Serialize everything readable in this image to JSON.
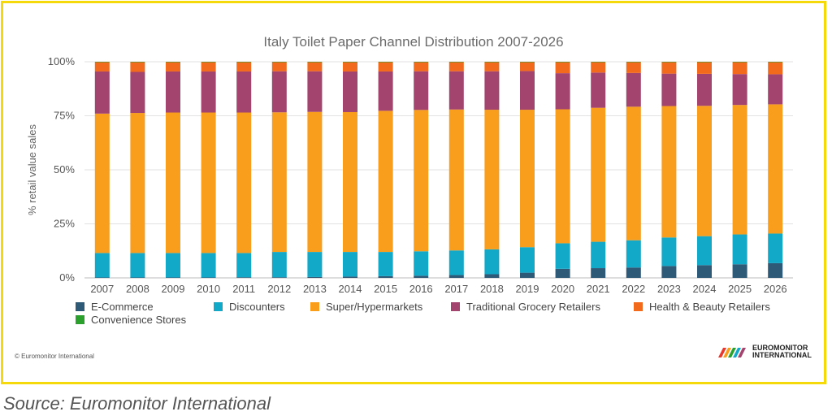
{
  "source_caption": "Source: Euromonitor International",
  "copyright": "© Euromonitor International",
  "logo": {
    "line1": "EUROMONITOR",
    "line2": "INTERNATIONAL"
  },
  "chart_data": {
    "type": "bar",
    "stacked": true,
    "title": "Italy Toilet Paper Channel Distribution 2007-2026",
    "xlabel": "",
    "ylabel": "% retail value sales",
    "ylim": [
      0,
      100
    ],
    "yticks": [
      "0%",
      "25%",
      "50%",
      "75%",
      "100%"
    ],
    "grid": true,
    "legend_position": "bottom",
    "categories": [
      "2007",
      "2008",
      "2009",
      "2010",
      "2011",
      "2012",
      "2013",
      "2014",
      "2015",
      "2016",
      "2017",
      "2018",
      "2019",
      "2020",
      "2021",
      "2022",
      "2023",
      "2024",
      "2025",
      "2026"
    ],
    "series": [
      {
        "name": "E-Commerce",
        "color": "#2e5a78",
        "values": [
          0.2,
          0.2,
          0.2,
          0.2,
          0.3,
          0.3,
          0.4,
          0.6,
          0.8,
          1.0,
          1.3,
          1.7,
          2.4,
          4.2,
          4.5,
          4.8,
          5.5,
          5.9,
          6.3,
          6.8
        ]
      },
      {
        "name": "Discounters",
        "color": "#12a9c9",
        "values": [
          11.3,
          11.3,
          11.3,
          11.3,
          11.2,
          11.7,
          11.6,
          11.4,
          11.2,
          11.3,
          11.4,
          11.5,
          11.8,
          11.8,
          12.2,
          12.6,
          13.2,
          13.4,
          13.8,
          13.7
        ]
      },
      {
        "name": "Super/Hypermarkets",
        "color": "#f99d1c",
        "values": [
          64.5,
          64.8,
          65.0,
          65.0,
          65.0,
          64.6,
          64.8,
          64.7,
          65.3,
          65.4,
          65.2,
          64.6,
          63.6,
          62.0,
          62.0,
          61.8,
          60.8,
          60.3,
          59.9,
          59.8
        ]
      },
      {
        "name": "Traditional Grocery Retailers",
        "color": "#a3446f",
        "values": [
          19.5,
          19.0,
          19.0,
          19.0,
          19.0,
          19.0,
          18.8,
          18.8,
          18.2,
          17.9,
          17.7,
          17.8,
          17.9,
          16.7,
          16.3,
          15.6,
          15.0,
          14.8,
          14.3,
          13.9
        ]
      },
      {
        "name": "Health & Beauty Retailers",
        "color": "#f26a1b",
        "values": [
          4.3,
          4.5,
          4.3,
          4.3,
          4.3,
          4.2,
          4.2,
          4.3,
          4.3,
          4.2,
          4.2,
          4.2,
          4.1,
          5.1,
          4.8,
          5.0,
          5.3,
          5.4,
          5.5,
          5.6
        ]
      },
      {
        "name": "Convenience Stores",
        "color": "#2ca02c",
        "values": [
          0.2,
          0.2,
          0.2,
          0.2,
          0.2,
          0.2,
          0.2,
          0.2,
          0.2,
          0.2,
          0.2,
          0.2,
          0.2,
          0.2,
          0.2,
          0.2,
          0.2,
          0.2,
          0.2,
          0.2
        ]
      }
    ]
  }
}
